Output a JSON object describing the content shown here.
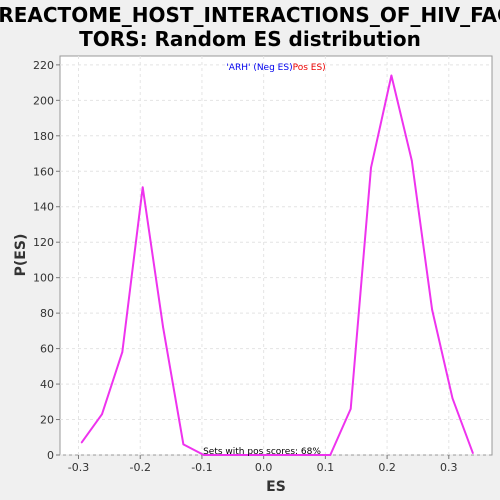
{
  "chart_data": {
    "type": "line",
    "title_lines": [
      "REACTOME_HOST_INTERACTIONS_OF_HIV_FAC",
      "TORS: Random ES distribution"
    ],
    "xlabel": "ES",
    "ylabel": "P(ES)",
    "xlim": [
      -0.33,
      0.37
    ],
    "ylim": [
      0,
      225
    ],
    "xticks": [
      -0.3,
      -0.2,
      -0.1,
      0.0,
      0.1,
      0.2,
      0.3
    ],
    "xtick_labels": [
      "-0.3",
      "-0.2",
      "-0.1",
      "0.0",
      "0.1",
      "0.2",
      "0.3"
    ],
    "yticks": [
      0,
      20,
      40,
      60,
      80,
      100,
      120,
      140,
      160,
      180,
      200,
      220
    ],
    "ytick_labels": [
      "0",
      "20",
      "40",
      "60",
      "80",
      "100",
      "120",
      "140",
      "160",
      "180",
      "200",
      "220"
    ],
    "grid": true,
    "series": [
      {
        "color": "#ee33ee",
        "x": [
          -0.295,
          -0.262,
          -0.229,
          -0.196,
          -0.163,
          -0.13,
          -0.097,
          -0.064,
          -0.031,
          0.002,
          0.035,
          0.068,
          0.101,
          0.108,
          0.141,
          0.174,
          0.207,
          0.24,
          0.273,
          0.306,
          0.339
        ],
        "y": [
          7,
          23,
          58,
          151,
          72,
          6,
          0,
          0,
          0,
          0,
          0,
          0,
          0,
          0,
          26,
          162,
          214,
          166,
          82,
          32,
          1
        ]
      }
    ],
    "legend": {
      "placement": "top-center",
      "parts": [
        {
          "text": "'ARH' (Neg ES)",
          "color": "#0000ee"
        },
        {
          "text": "Pos ES)",
          "color": "#ee0000"
        }
      ]
    },
    "annotation": "Sets with pos scores: 68%"
  }
}
